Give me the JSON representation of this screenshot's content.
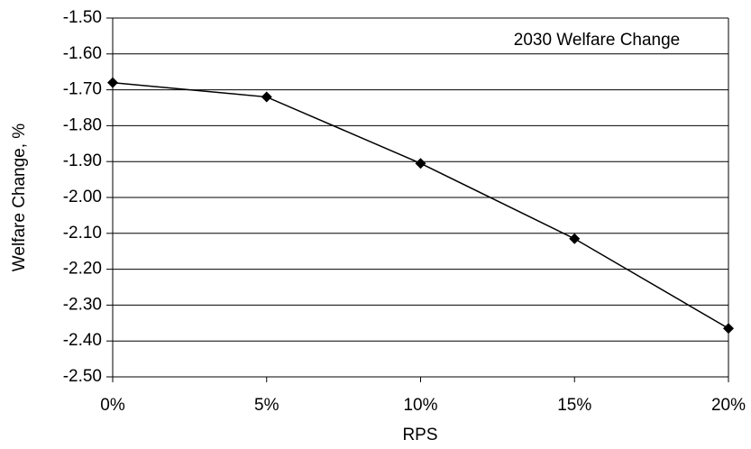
{
  "chart_data": {
    "type": "line",
    "x_label": "RPS",
    "y_label": "Welfare Change, %",
    "categories": [
      "0%",
      "5%",
      "10%",
      "15%",
      "20%"
    ],
    "series": [
      {
        "name": "2030 Welfare Change",
        "color": "#000000",
        "values": [
          -1.68,
          -1.72,
          -1.905,
          -2.115,
          -2.365
        ]
      }
    ],
    "ylim": [
      -2.5,
      -1.5
    ],
    "yticks": [
      {
        "value": -1.5,
        "label": "-1.50"
      },
      {
        "value": -1.6,
        "label": "-1.60"
      },
      {
        "value": -1.7,
        "label": "-1.70"
      },
      {
        "value": -1.8,
        "label": "-1.80"
      },
      {
        "value": -1.9,
        "label": "-1.90"
      },
      {
        "value": -2.0,
        "label": "-2.00"
      },
      {
        "value": -2.1,
        "label": "-2.10"
      },
      {
        "value": -2.2,
        "label": "-2.20"
      },
      {
        "value": -2.3,
        "label": "-2.30"
      },
      {
        "value": -2.4,
        "label": "-2.40"
      },
      {
        "value": -2.5,
        "label": "-2.50"
      }
    ],
    "grid": true
  }
}
